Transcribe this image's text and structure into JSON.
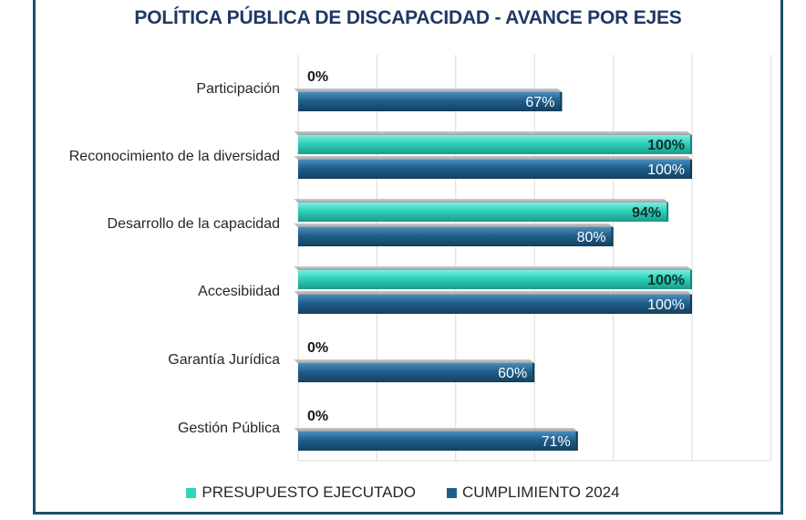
{
  "chart_data": {
    "type": "bar",
    "orientation": "horizontal",
    "title": "POLÍTICA PÚBLICA DE DISCAPACIDAD - AVANCE  POR EJES",
    "categories": [
      "Participación",
      "Reconocimiento de la diversidad",
      "Desarrollo de la capacidad",
      "Accesibiidad",
      "Garantía Jurídica",
      "Gestión Pública"
    ],
    "series": [
      {
        "name": "PRESUPUESTO EJECUTADO",
        "values": [
          0,
          100,
          94,
          100,
          0,
          0
        ],
        "labels": [
          "0%",
          "100%",
          "94%",
          "100%",
          "0%",
          "0%"
        ],
        "color": "#2dd4bf"
      },
      {
        "name": "CUMPLIMIENTO 2024",
        "values": [
          67,
          100,
          80,
          100,
          60,
          71
        ],
        "labels": [
          "67%",
          "100%",
          "80%",
          "100%",
          "60%",
          "71%"
        ],
        "color": "#1f5f8b"
      }
    ],
    "xlim": [
      0,
      120
    ],
    "grid": true,
    "legend_position": "bottom"
  }
}
